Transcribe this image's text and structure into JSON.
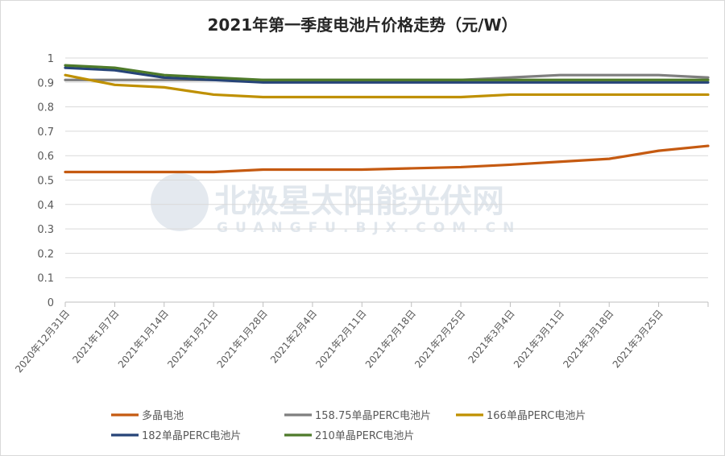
{
  "chart_data": {
    "type": "line",
    "title": "2021年第一季度电池片价格走势（元/W）",
    "xlabel": "",
    "ylabel": "",
    "ylim": [
      0,
      1
    ],
    "yticks": [
      "0",
      "0.1",
      "0.2",
      "0.3",
      "0.4",
      "0.5",
      "0.6",
      "0.7",
      "0.8",
      "0.9",
      "1"
    ],
    "grid": true,
    "legend_position": "bottom",
    "categories": [
      "2020年12月31日",
      "2021年1月7日",
      "2021年1月14日",
      "2021年1月21日",
      "2021年1月28日",
      "2021年2月4日",
      "2021年2月11日",
      "2021年2月18日",
      "2021年2月25日",
      "2021年3月4日",
      "2021年3月11日",
      "2021年3月18日",
      "2021年3月25日",
      ""
    ],
    "series": [
      {
        "name": "多晶电池",
        "color": "#C55A11",
        "values": [
          0.533,
          0.533,
          0.533,
          0.533,
          0.543,
          0.543,
          0.543,
          0.548,
          0.553,
          0.563,
          0.575,
          0.587,
          0.62,
          0.64
        ]
      },
      {
        "name": "158.75单晶PERC电池片",
        "color": "#7F7F7F",
        "values": [
          0.91,
          0.91,
          0.91,
          0.91,
          0.91,
          0.91,
          0.91,
          0.91,
          0.91,
          0.92,
          0.93,
          0.93,
          0.93,
          0.92
        ]
      },
      {
        "name": "166单晶PERC电池片",
        "color": "#BF9000",
        "values": [
          0.93,
          0.89,
          0.88,
          0.85,
          0.84,
          0.84,
          0.84,
          0.84,
          0.84,
          0.85,
          0.85,
          0.85,
          0.85,
          0.85
        ]
      },
      {
        "name": "182单晶PERC电池片",
        "color": "#264478",
        "values": [
          0.96,
          0.95,
          0.92,
          0.91,
          0.9,
          0.9,
          0.9,
          0.9,
          0.9,
          0.9,
          0.9,
          0.9,
          0.9,
          0.9
        ]
      },
      {
        "name": "210单晶PERC电池片",
        "color": "#4E7A2A",
        "values": [
          0.97,
          0.96,
          0.93,
          0.92,
          0.91,
          0.91,
          0.91,
          0.91,
          0.91,
          0.91,
          0.91,
          0.91,
          0.91,
          0.91
        ]
      }
    ]
  },
  "watermark": {
    "cn": "北极星太阳能光伏网",
    "en": "GUANGFU.BJX.COM.CN"
  }
}
